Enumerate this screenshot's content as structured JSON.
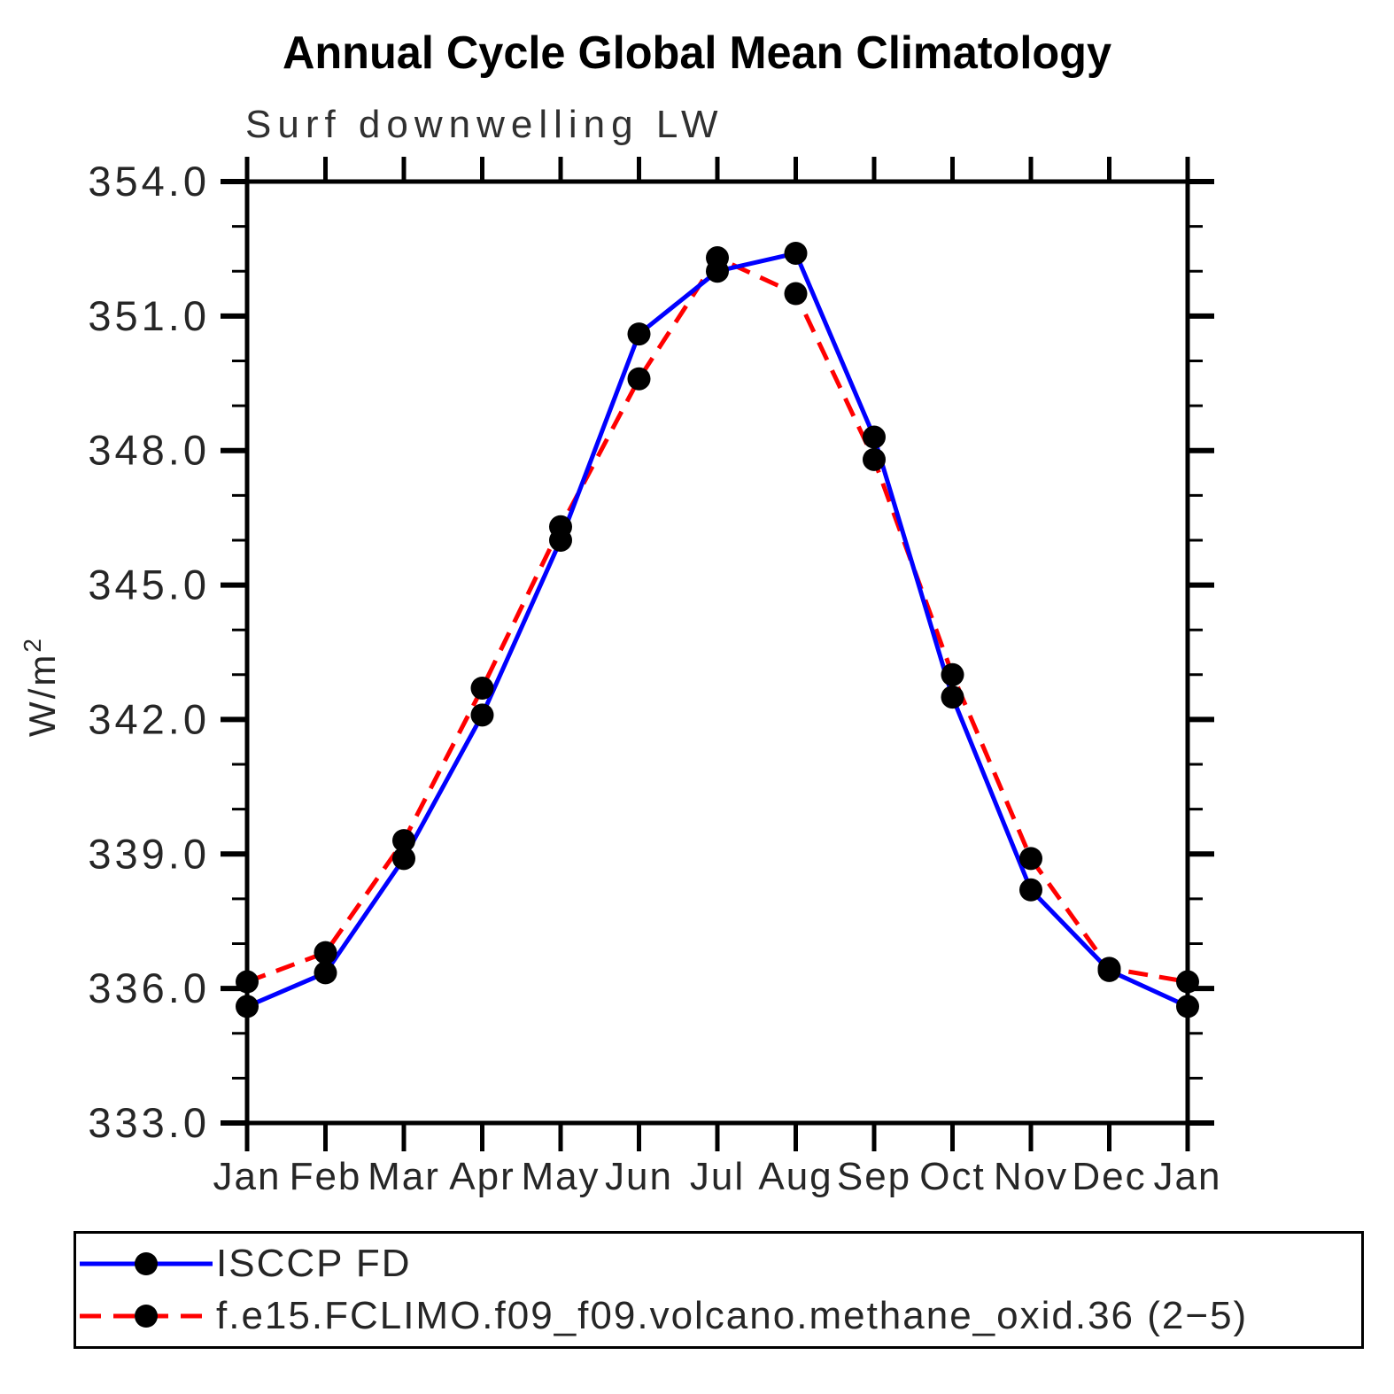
{
  "chart_data": {
    "type": "line",
    "title": "Annual Cycle Global Mean Climatology",
    "subtitle": "Surf downwelling LW",
    "ylabel": "W/m²",
    "xlabel": "",
    "x_categories": [
      "Jan",
      "Feb",
      "Mar",
      "Apr",
      "May",
      "Jun",
      "Jul",
      "Aug",
      "Sep",
      "Oct",
      "Nov",
      "Dec",
      "Jan"
    ],
    "ylim": [
      333.0,
      354.0
    ],
    "ytick_major": [
      333.0,
      336.0,
      339.0,
      342.0,
      345.0,
      348.0,
      351.0,
      354.0
    ],
    "ytick_labels": [
      "333.0",
      "336.0",
      "339.0",
      "342.0",
      "345.0",
      "348.0",
      "351.0",
      "354.0"
    ],
    "ytick_minor_step": 1.0,
    "grid": false,
    "legend_position": "bottom",
    "marker_color": "#000000",
    "series": [
      {
        "name": "ISCCP FD",
        "color": "#0000ff",
        "style": "solid",
        "marker": "filled-circle",
        "values": [
          335.6,
          336.35,
          338.9,
          342.1,
          346.0,
          350.6,
          352.0,
          352.4,
          348.3,
          342.5,
          338.2,
          336.4,
          335.6
        ]
      },
      {
        "name": "f.e15.FCLIMO.f09_f09.volcano.methane_oxid.36 (2−5)",
        "color": "#ff0000",
        "style": "dashed",
        "marker": "filled-circle",
        "values": [
          336.15,
          336.8,
          339.3,
          342.7,
          346.3,
          349.6,
          352.3,
          351.5,
          347.8,
          343.0,
          338.9,
          336.45,
          336.15
        ]
      }
    ]
  }
}
